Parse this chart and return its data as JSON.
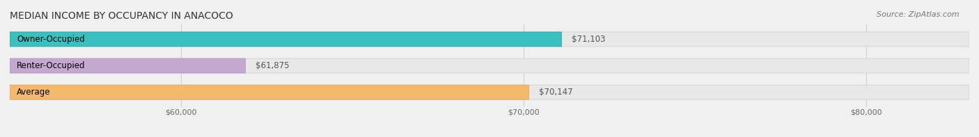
{
  "title": "MEDIAN INCOME BY OCCUPANCY IN ANACOCO",
  "source": "Source: ZipAtlas.com",
  "categories": [
    "Owner-Occupied",
    "Renter-Occupied",
    "Average"
  ],
  "values": [
    71103,
    61875,
    70147
  ],
  "labels": [
    "$71,103",
    "$61,875",
    "$70,147"
  ],
  "bar_colors": [
    "#3bbfbf",
    "#c4a8d0",
    "#f5b96e"
  ],
  "bar_edge_colors": [
    "#2a9f9f",
    "#b090c0",
    "#e8a050"
  ],
  "background_color": "#f0f0f0",
  "bar_bg_color": "#e8e8e8",
  "xlim": [
    55000,
    83000
  ],
  "xticks": [
    60000,
    70000,
    80000
  ],
  "xtick_labels": [
    "$60,000",
    "$70,000",
    "$80,000"
  ],
  "figsize": [
    14.06,
    1.97
  ],
  "dpi": 100,
  "bar_height": 0.55,
  "title_fontsize": 10,
  "label_fontsize": 8.5,
  "tick_fontsize": 8,
  "source_fontsize": 8
}
